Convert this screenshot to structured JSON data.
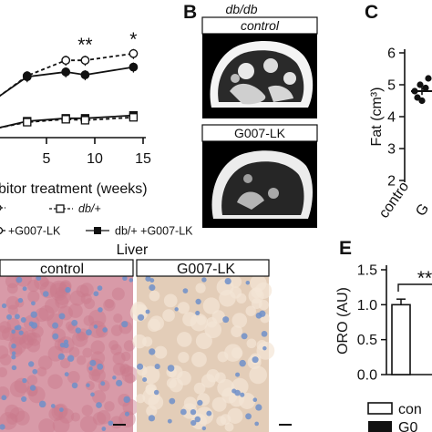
{
  "panels": {
    "A": {
      "letter": "",
      "x_label": "bitor treatment (weeks)",
      "x_ticks": [
        "5",
        "10",
        "15"
      ],
      "legend": [
        {
          "marker": "open-circle-dashed",
          "text": ""
        },
        {
          "marker": "open-square-dashed",
          "text": "db/+"
        },
        {
          "marker": "open-circle-solid",
          "text": "+G007-LK"
        },
        {
          "marker": "filled-square-solid",
          "text": "db/+ +G007-LK"
        }
      ],
      "significance": [
        "**",
        "*"
      ]
    },
    "B": {
      "letter": "B",
      "title": "db/db",
      "image_labels": [
        "control",
        "G007-LK"
      ]
    },
    "C": {
      "letter": "C",
      "y_ticks": [
        "2",
        "3",
        "4",
        "5",
        "6"
      ],
      "y_label": "Fat (cm³)",
      "x_ticks": [
        "contro",
        "G"
      ]
    },
    "D": {
      "title": "Liver",
      "image_labels": [
        "control",
        "G007-LK"
      ]
    },
    "E": {
      "letter": "E",
      "y_ticks": [
        "0.0",
        "0.5",
        "1.0",
        "1.5"
      ],
      "y_label": "ORO (AU)",
      "significance": "**",
      "legend": [
        {
          "marker": "open-bar",
          "text": "con"
        },
        {
          "marker": "filled-bar",
          "text": "G0"
        }
      ]
    }
  },
  "colors": {
    "ink": "#111111",
    "liver_control": "#d89aa8",
    "liver_treated": "#e3cdb8",
    "nuclei": "#6f8fc9"
  },
  "chart_data": [
    {
      "panel": "A",
      "type": "line",
      "xlabel": "bitor treatment (weeks)",
      "xlim": [
        0,
        15
      ],
      "x_ticks": [
        5,
        10,
        15
      ],
      "ylim": [
        0,
        1
      ],
      "y_scale": "relative, no y-axis visible",
      "series": [
        {
          "style": "open circles, dashed line",
          "x": [
            0,
            3,
            7,
            9,
            14
          ],
          "y": [
            0.42,
            0.64,
            0.8,
            0.8,
            0.87
          ]
        },
        {
          "style": "filled circles, solid line",
          "x": [
            0,
            3,
            7,
            9,
            14
          ],
          "y": [
            0.42,
            0.63,
            0.68,
            0.65,
            0.73
          ]
        },
        {
          "style": "filled squares, solid line",
          "x": [
            0,
            3,
            7,
            9,
            14
          ],
          "y": [
            0.1,
            0.17,
            0.2,
            0.2,
            0.23
          ]
        },
        {
          "style": "open squares, dashed line",
          "x": [
            0,
            3,
            7,
            9,
            14
          ],
          "y": [
            0.1,
            0.16,
            0.19,
            0.18,
            0.21
          ]
        }
      ],
      "annotations": [
        {
          "text": "**",
          "x": 9
        },
        {
          "text": "*",
          "x": 14
        }
      ]
    },
    {
      "panel": "C",
      "type": "scatter",
      "ylabel": "Fat (cm³)",
      "ylim": [
        2,
        6
      ],
      "y_ticks": [
        2,
        3,
        4,
        5,
        6
      ],
      "categories": [
        "contro",
        "G"
      ],
      "points": [
        4.8,
        5.0,
        4.6,
        4.9,
        4.5,
        5.2
      ],
      "mean": 4.8
    },
    {
      "panel": "E",
      "type": "bar",
      "ylabel": "ORO (AU)",
      "ylim": [
        0,
        1.5
      ],
      "y_ticks": [
        0.0,
        0.5,
        1.0,
        1.5
      ],
      "series": [
        {
          "name": "con",
          "values": [
            1.0
          ],
          "error": [
            0.08
          ]
        }
      ],
      "annotations": [
        {
          "text": "**"
        }
      ]
    }
  ]
}
